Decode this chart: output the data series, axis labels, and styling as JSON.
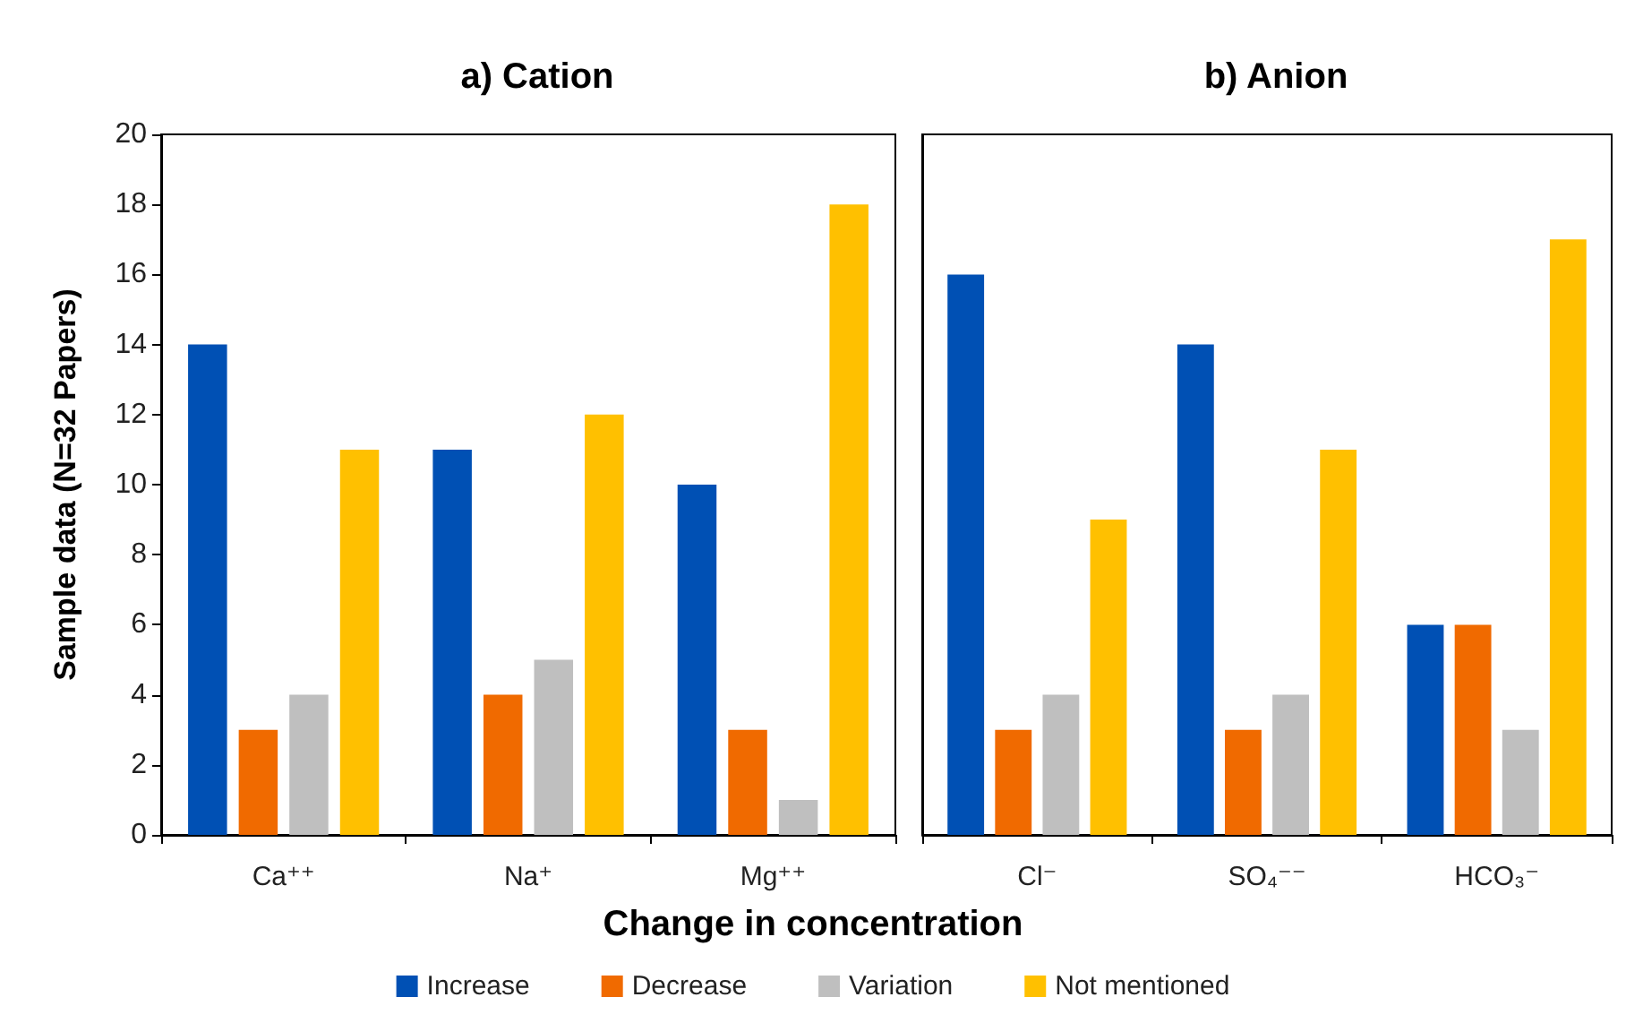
{
  "chart_data": [
    {
      "type": "bar",
      "title": "a) Cation",
      "xlabel": "Change in concentration",
      "ylabel": "Sample data (N=32 Papers)",
      "categories": [
        "Ca⁺⁺",
        "Na⁺",
        "Mg⁺⁺"
      ],
      "series": [
        {
          "name": "Increase",
          "color": "#0050b4",
          "values": [
            14,
            11,
            10
          ]
        },
        {
          "name": "Decrease",
          "color": "#f06a00",
          "values": [
            3,
            4,
            3
          ]
        },
        {
          "name": "Variation",
          "color": "#bfbfbf",
          "values": [
            4,
            5,
            1
          ]
        },
        {
          "name": "Not mentioned",
          "color": "#ffc000",
          "values": [
            11,
            12,
            18
          ]
        }
      ],
      "ylim": [
        0,
        20
      ],
      "yticks": [
        0,
        2,
        4,
        6,
        8,
        10,
        12,
        14,
        16,
        18,
        20
      ],
      "grid": false,
      "legend": "bottom"
    },
    {
      "type": "bar",
      "title": "b) Anion",
      "categories": [
        "Cl⁻",
        "SO₄⁻⁻",
        "HCO₃⁻"
      ],
      "series": [
        {
          "color": "#0050b4",
          "values": [
            16,
            14,
            6
          ]
        },
        {
          "color": "#f06a00",
          "values": [
            3,
            3,
            6
          ]
        },
        {
          "color": "#bfbfbf",
          "values": [
            4,
            4,
            3
          ]
        },
        {
          "color": "#ffc000",
          "values": [
            9,
            11,
            17
          ]
        }
      ],
      "ylim": [
        0,
        20
      ],
      "tick_labels": "x",
      "grid": false,
      "legend": false
    }
  ]
}
